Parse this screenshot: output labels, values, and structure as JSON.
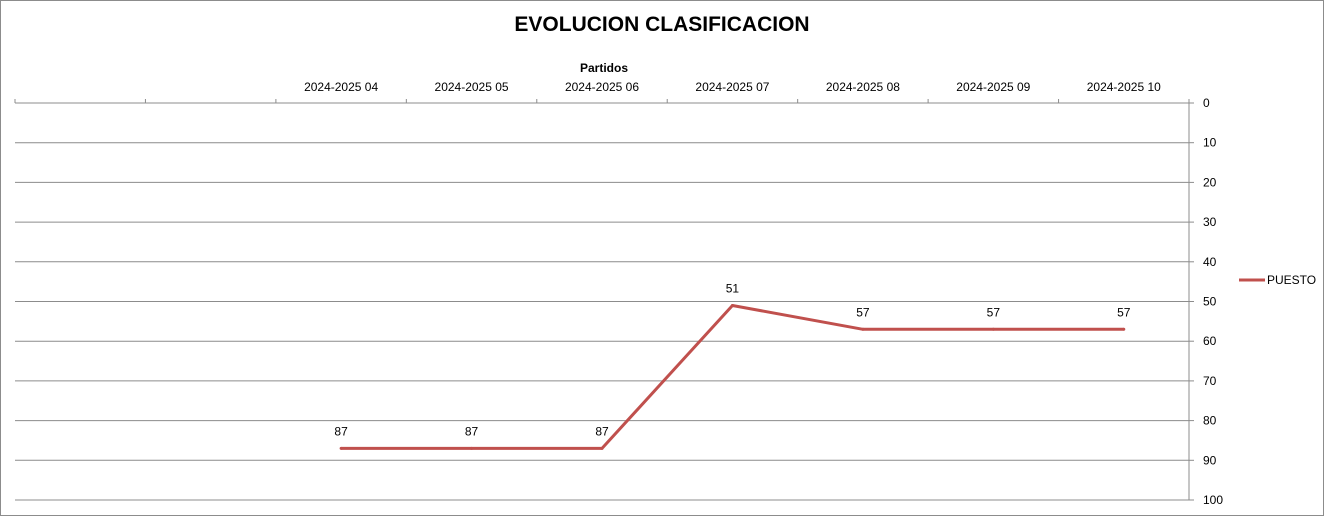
{
  "chart_data": {
    "type": "line",
    "title": "EVOLUCION CLASIFICACION",
    "xlabel": "Partidos",
    "ylabel": "",
    "categories": [
      "",
      "",
      "2024-2025 04",
      "2024-2025 05",
      "2024-2025 06",
      "2024-2025 07",
      "2024-2025 08",
      "2024-2025 09",
      "2024-2025 10"
    ],
    "series": [
      {
        "name": "PUESTO",
        "values": [
          null,
          null,
          87,
          87,
          87,
          51,
          57,
          57,
          57
        ],
        "color": "#c0504d"
      }
    ],
    "ylim": [
      0,
      100
    ],
    "y_ticks": [
      0,
      10,
      20,
      30,
      40,
      50,
      60,
      70,
      80,
      90,
      100
    ],
    "y_reversed": true,
    "y_axis_side": "right",
    "x_axis_position": "top",
    "grid": true,
    "legend": "right",
    "data_labels": true
  }
}
